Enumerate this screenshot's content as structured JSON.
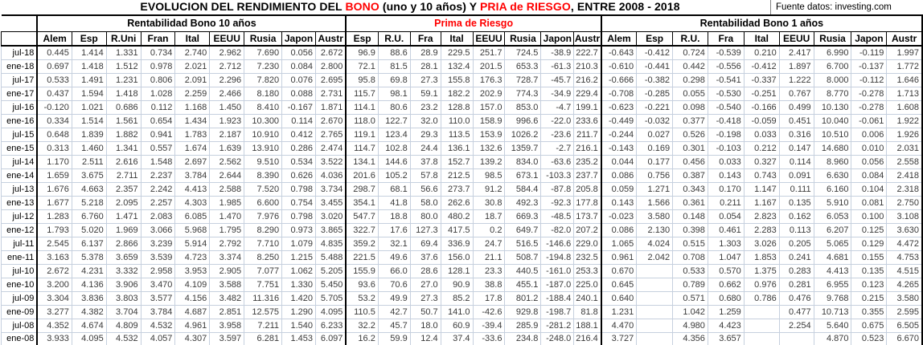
{
  "title": {
    "segments": [
      {
        "text": "EVOLUCION DEL RENDIMIENTO DEL ",
        "color": "#000000"
      },
      {
        "text": "BONO",
        "color": "#ff0000"
      },
      {
        "text": " (uno y 10 años) Y ",
        "color": "#000000"
      },
      {
        "text": "PRIA de RIESGO",
        "color": "#ff0000"
      },
      {
        "text": ", ENTRE 2008 - 2018",
        "color": "#000000"
      }
    ]
  },
  "source_note": "Fuente datos: investing.com",
  "row_labels": [
    "jul-18",
    "ene-18",
    "jul-17",
    "ene-17",
    "jul-16",
    "ene-16",
    "jul-15",
    "ene-15",
    "jul-14",
    "ene-14",
    "jul-13",
    "ene-13",
    "jul-12",
    "ene-12",
    "jul-11",
    "ene-11",
    "jul-10",
    "ene-10",
    "jul-09",
    "ene-09",
    "jul-08",
    "ene-08"
  ],
  "sections": [
    {
      "id": "bono10",
      "title": "Rentabilidad Bono 10 años",
      "title_color": "#000000",
      "columns": [
        "Alem",
        "Esp",
        "R.Uni",
        "Fran",
        "Ital",
        "EEUU",
        "Rusia",
        "Japon",
        "Austr"
      ],
      "black_negative_columns": [],
      "rows": [
        [
          "0.445",
          "1.414",
          "1.331",
          "0.734",
          "2.740",
          "2.962",
          "7.690",
          "0.056",
          "2.672"
        ],
        [
          "0.697",
          "1.418",
          "1.512",
          "0.978",
          "2.021",
          "2.712",
          "7.230",
          "0.084",
          "2.800"
        ],
        [
          "0.533",
          "1.491",
          "1.231",
          "0.806",
          "2.091",
          "2.296",
          "7.820",
          "0.076",
          "2.695"
        ],
        [
          "0.437",
          "1.594",
          "1.418",
          "1.028",
          "2.259",
          "2.466",
          "8.180",
          "0.088",
          "2.731"
        ],
        [
          "-0.120",
          "1.021",
          "0.686",
          "0.112",
          "1.168",
          "1.450",
          "8.410",
          "-0.167",
          "1.871"
        ],
        [
          "0.334",
          "1.514",
          "1.561",
          "0.654",
          "1.434",
          "1.923",
          "10.300",
          "0.114",
          "2.670"
        ],
        [
          "0.648",
          "1.839",
          "1.882",
          "0.941",
          "1.783",
          "2.187",
          "10.910",
          "0.412",
          "2.765"
        ],
        [
          "0.313",
          "1.460",
          "1.341",
          "0.557",
          "1.674",
          "1.639",
          "13.910",
          "0.286",
          "2.474"
        ],
        [
          "1.170",
          "2.511",
          "2.616",
          "1.548",
          "2.697",
          "2.562",
          "9.510",
          "0.534",
          "3.522"
        ],
        [
          "1.659",
          "3.675",
          "2.711",
          "2.237",
          "3.784",
          "2.644",
          "8.390",
          "0.626",
          "4.036"
        ],
        [
          "1.676",
          "4.663",
          "2.357",
          "2.242",
          "4.413",
          "2.588",
          "7.520",
          "0.798",
          "3.734"
        ],
        [
          "1.677",
          "5.218",
          "2.095",
          "2.257",
          "4.303",
          "1.985",
          "6.600",
          "0.754",
          "3.455"
        ],
        [
          "1.283",
          "6.760",
          "1.471",
          "2.083",
          "6.085",
          "1.470",
          "7.976",
          "0.798",
          "3.020"
        ],
        [
          "1.793",
          "5.020",
          "1.969",
          "3.066",
          "5.968",
          "1.795",
          "8.290",
          "0.973",
          "3.865"
        ],
        [
          "2.545",
          "6.137",
          "2.866",
          "3.239",
          "5.914",
          "2.792",
          "7.710",
          "1.079",
          "4.835"
        ],
        [
          "3.163",
          "5.378",
          "3.659",
          "3.539",
          "4.723",
          "3.374",
          "8.250",
          "1.215",
          "5.488"
        ],
        [
          "2.672",
          "4.231",
          "3.332",
          "2.958",
          "3.953",
          "2.905",
          "7.077",
          "1.062",
          "5.205"
        ],
        [
          "3.200",
          "4.136",
          "3.906",
          "3.470",
          "4.109",
          "3.588",
          "7.751",
          "1.330",
          "5.450"
        ],
        [
          "3.304",
          "3.836",
          "3.803",
          "3.577",
          "4.156",
          "3.482",
          "11.316",
          "1.420",
          "5.705"
        ],
        [
          "3.277",
          "4.382",
          "3.704",
          "3.784",
          "4.687",
          "2.851",
          "12.575",
          "1.290",
          "4.095"
        ],
        [
          "4.352",
          "4.674",
          "4.809",
          "4.532",
          "4.961",
          "3.958",
          "7.211",
          "1.540",
          "6.233"
        ],
        [
          "3.933",
          "4.095",
          "4.532",
          "4.057",
          "4.307",
          "3.597",
          "6.281",
          "1.453",
          "6.097"
        ]
      ]
    },
    {
      "id": "prima",
      "title": "Prima de Riesgo",
      "title_color": "#ff0000",
      "columns": [
        "Esp",
        "R.U.",
        "Fra",
        "Ital",
        "EEUU",
        "Rusia",
        "Japon",
        "Austr"
      ],
      "black_negative_columns": [
        4
      ],
      "rows": [
        [
          "96.9",
          "88.6",
          "28.9",
          "229.5",
          "251.7",
          "724.5",
          "-38.9",
          "222.7"
        ],
        [
          "72.1",
          "81.5",
          "28.1",
          "132.4",
          "201.5",
          "653.3",
          "-61.3",
          "210.3"
        ],
        [
          "95.8",
          "69.8",
          "27.3",
          "155.8",
          "176.3",
          "728.7",
          "-45.7",
          "216.2"
        ],
        [
          "115.7",
          "98.1",
          "59.1",
          "182.2",
          "202.9",
          "774.3",
          "-34.9",
          "229.4"
        ],
        [
          "114.1",
          "80.6",
          "23.2",
          "128.8",
          "157.0",
          "853.0",
          "-4.7",
          "199.1"
        ],
        [
          "118.0",
          "122.7",
          "32.0",
          "110.0",
          "158.9",
          "996.6",
          "-22.0",
          "233.6"
        ],
        [
          "119.1",
          "123.4",
          "29.3",
          "113.5",
          "153.9",
          "1026.2",
          "-23.6",
          "211.7"
        ],
        [
          "114.7",
          "102.8",
          "24.4",
          "136.1",
          "132.6",
          "1359.7",
          "-2.7",
          "216.1"
        ],
        [
          "134.1",
          "144.6",
          "37.8",
          "152.7",
          "139.2",
          "834.0",
          "-63.6",
          "235.2"
        ],
        [
          "201.6",
          "105.2",
          "57.8",
          "212.5",
          "98.5",
          "673.1",
          "-103.3",
          "237.7"
        ],
        [
          "298.7",
          "68.1",
          "56.6",
          "273.7",
          "91.2",
          "584.4",
          "-87.8",
          "205.8"
        ],
        [
          "354.1",
          "41.8",
          "58.0",
          "262.6",
          "30.8",
          "492.3",
          "-92.3",
          "177.8"
        ],
        [
          "547.7",
          "18.8",
          "80.0",
          "480.2",
          "18.7",
          "669.3",
          "-48.5",
          "173.7"
        ],
        [
          "322.7",
          "17.6",
          "127.3",
          "417.5",
          "0.2",
          "649.7",
          "-82.0",
          "207.2"
        ],
        [
          "359.2",
          "32.1",
          "69.4",
          "336.9",
          "24.7",
          "516.5",
          "-146.6",
          "229.0"
        ],
        [
          "221.5",
          "49.6",
          "37.6",
          "156.0",
          "21.1",
          "508.7",
          "-194.8",
          "232.5"
        ],
        [
          "155.9",
          "66.0",
          "28.6",
          "128.1",
          "23.3",
          "440.5",
          "-161.0",
          "253.3"
        ],
        [
          "93.6",
          "70.6",
          "27.0",
          "90.9",
          "38.8",
          "455.1",
          "-187.0",
          "225.0"
        ],
        [
          "53.2",
          "49.9",
          "27.3",
          "85.2",
          "17.8",
          "801.2",
          "-188.4",
          "240.1"
        ],
        [
          "110.5",
          "42.7",
          "50.7",
          "141.0",
          "-42.6",
          "929.8",
          "-198.7",
          "81.8"
        ],
        [
          "32.2",
          "45.7",
          "18.0",
          "60.9",
          "-39.4",
          "285.9",
          "-281.2",
          "188.1"
        ],
        [
          "16.2",
          "59.9",
          "12.4",
          "37.4",
          "-33.6",
          "234.8",
          "-248.0",
          "216.4"
        ]
      ]
    },
    {
      "id": "bono1",
      "title": "Rentabilidad Bono 1 años",
      "title_color": "#000000",
      "columns": [
        "Alem",
        "Esp",
        "R.U.",
        "Fra",
        "Ital",
        "EEUU",
        "Rusia",
        "Japon",
        "Austr"
      ],
      "black_negative_columns": [],
      "rows": [
        [
          "-0.643",
          "-0.412",
          "0.724",
          "-0.539",
          "0.210",
          "2.417",
          "6.990",
          "-0.119",
          "1.997"
        ],
        [
          "-0.610",
          "-0.441",
          "0.442",
          "-0.556",
          "-0.412",
          "1.897",
          "6.700",
          "-0.137",
          "1.772"
        ],
        [
          "-0.666",
          "-0.382",
          "0.298",
          "-0.541",
          "-0.337",
          "1.222",
          "8.000",
          "-0.112",
          "1.646"
        ],
        [
          "-0.708",
          "-0.285",
          "0.055",
          "-0.530",
          "-0.251",
          "0.767",
          "8.770",
          "-0.278",
          "1.713"
        ],
        [
          "-0.623",
          "-0.221",
          "0.098",
          "-0.540",
          "-0.166",
          "0.499",
          "10.130",
          "-0.278",
          "1.608"
        ],
        [
          "-0.449",
          "-0.032",
          "0.377",
          "-0.418",
          "-0.059",
          "0.451",
          "10.040",
          "-0.061",
          "1.922"
        ],
        [
          "-0.244",
          "0.027",
          "0.526",
          "-0.198",
          "0.033",
          "0.316",
          "10.510",
          "0.006",
          "1.926"
        ],
        [
          "-0.143",
          "0.169",
          "0.301",
          "-0.103",
          "0.212",
          "0.147",
          "14.680",
          "0.010",
          "2.031"
        ],
        [
          "0.044",
          "0.177",
          "0.456",
          "0.033",
          "0.327",
          "0.114",
          "8.960",
          "0.056",
          "2.558"
        ],
        [
          "0.086",
          "0.756",
          "0.387",
          "0.143",
          "0.743",
          "0.091",
          "6.630",
          "0.084",
          "2.418"
        ],
        [
          "0.059",
          "1.271",
          "0.343",
          "0.170",
          "1.147",
          "0.111",
          "6.160",
          "0.104",
          "2.318"
        ],
        [
          "0.143",
          "1.566",
          "0.361",
          "0.211",
          "1.167",
          "0.135",
          "5.910",
          "0.081",
          "2.750"
        ],
        [
          "-0.023",
          "3.580",
          "0.148",
          "0.054",
          "2.823",
          "0.162",
          "6.053",
          "0.100",
          "3.108"
        ],
        [
          "0.086",
          "2.130",
          "0.398",
          "0.461",
          "2.283",
          "0.113",
          "6.207",
          "0.125",
          "3.630"
        ],
        [
          "1.065",
          "4.024",
          "0.515",
          "1.303",
          "3.026",
          "0.205",
          "5.065",
          "0.129",
          "4.472"
        ],
        [
          "0.961",
          "2.042",
          "0.708",
          "1.047",
          "1.853",
          "0.241",
          "4.681",
          "0.155",
          "4.753"
        ],
        [
          "0.670",
          "",
          "0.533",
          "0.570",
          "1.375",
          "0.283",
          "4.413",
          "0.135",
          "4.515"
        ],
        [
          "0.645",
          "",
          "0.789",
          "0.662",
          "0.976",
          "0.281",
          "6.955",
          "0.123",
          "4.265"
        ],
        [
          "0.640",
          "",
          "0.571",
          "0.680",
          "0.786",
          "0.476",
          "9.768",
          "0.215",
          "3.580"
        ],
        [
          "1.231",
          "",
          "1.042",
          "1.259",
          "",
          "0.477",
          "10.713",
          "0.355",
          "2.595"
        ],
        [
          "4.470",
          "",
          "4.980",
          "4.423",
          "",
          "2.254",
          "5.640",
          "0.675",
          "6.505"
        ],
        [
          "3.727",
          "",
          "4.356",
          "3.657",
          "",
          "",
          "4.870",
          "0.523",
          "6.670"
        ]
      ]
    }
  ],
  "styles": {
    "negative_color": "#ff0000",
    "grid_color": "#c6d0de",
    "border_color": "#000000"
  }
}
